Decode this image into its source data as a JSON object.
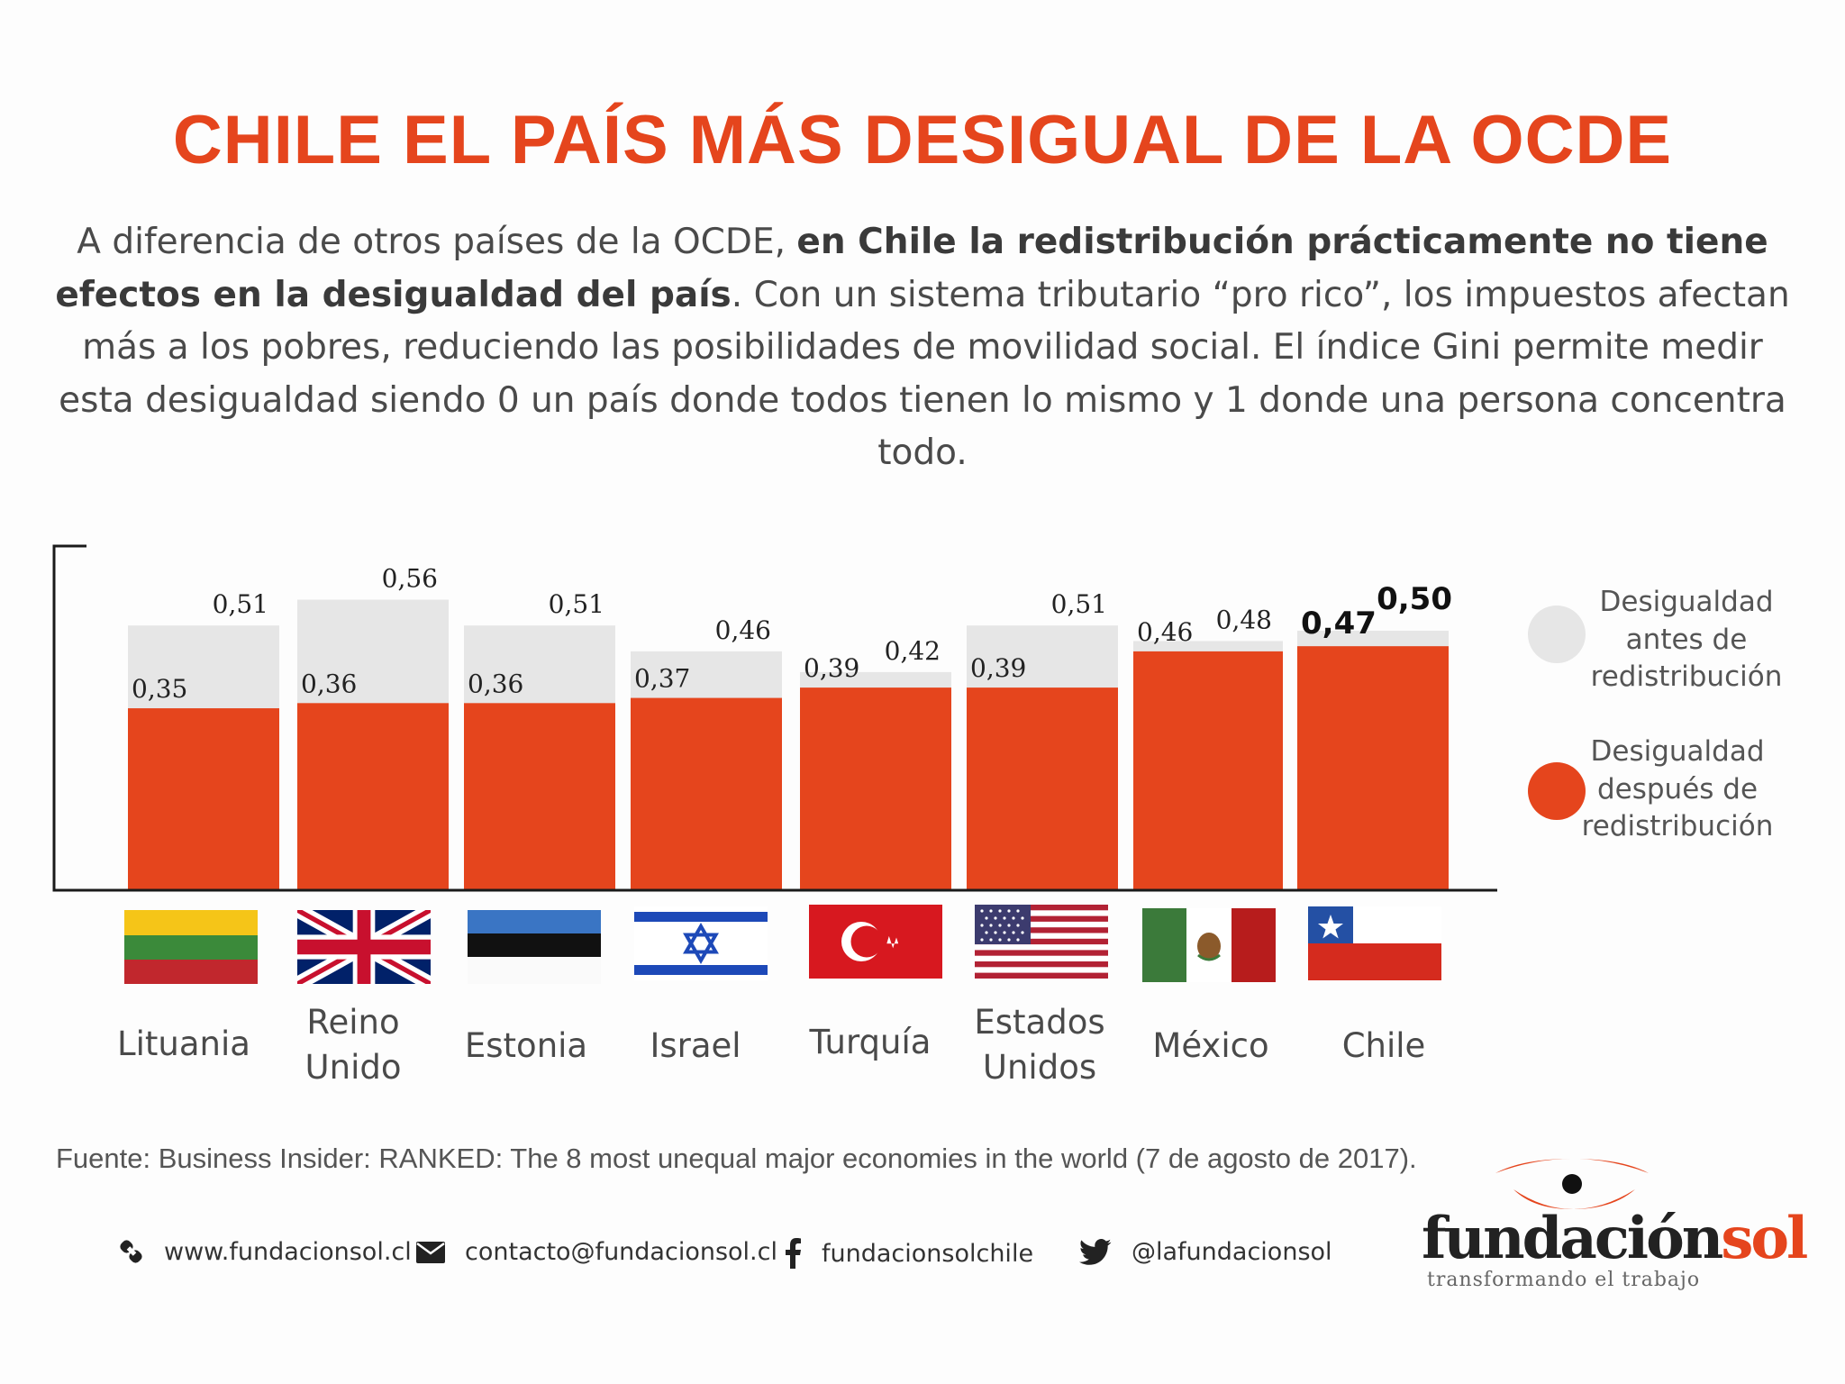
{
  "title": "CHILE EL PAÍS MÁS DESIGUAL DE LA OCDE",
  "intro": {
    "p1": "A diferencia de otros países de la OCDE, ",
    "bold": "en Chile la redistribución prácticamente no tiene efectos en la desigualdad del país",
    "p2": ". Con un sistema tributario “pro rico”, los impuestos afectan más a los pobres, reduciendo las posibilidades de movilidad social. El índice Gini permite medir esta desigualdad siendo 0 un país donde todos tienen lo mismo y 1 donde una persona concentra todo."
  },
  "chart_data": {
    "type": "bar",
    "categories": [
      "Lituania",
      "Reino Unido",
      "Estonia",
      "Israel",
      "Turquía",
      "Estados Unidos",
      "México",
      "Chile"
    ],
    "series": [
      {
        "name": "Desigualdad antes de redistribución",
        "values": [
          0.51,
          0.56,
          0.51,
          0.46,
          0.42,
          0.51,
          0.48,
          0.5
        ],
        "labels": [
          "0,51",
          "0,56",
          "0,51",
          "0,46",
          "0,42",
          "0,51",
          "0,48",
          "0,50"
        ],
        "color": "#e6e6e6"
      },
      {
        "name": "Desigualdad después de redistribución",
        "values": [
          0.35,
          0.36,
          0.36,
          0.37,
          0.39,
          0.39,
          0.46,
          0.47
        ],
        "labels": [
          "0,35",
          "0,36",
          "0,36",
          "0,37",
          "0,39",
          "0,39",
          "0,46",
          "0,47"
        ],
        "color": "#e5451d"
      }
    ],
    "highlight": "Chile",
    "ylim": [
      0,
      0.56
    ],
    "grid": false
  },
  "countries": {
    "c0": {
      "l1": "Lituania",
      "l2": ""
    },
    "c1": {
      "l1": "Reino",
      "l2": "Unido"
    },
    "c2": {
      "l1": "Estonia",
      "l2": ""
    },
    "c3": {
      "l1": "Israel",
      "l2": ""
    },
    "c4": {
      "l1": "Turquía",
      "l2": ""
    },
    "c5": {
      "l1": "Estados",
      "l2": "Unidos"
    },
    "c6": {
      "l1": "México",
      "l2": ""
    },
    "c7": {
      "l1": "Chile",
      "l2": ""
    }
  },
  "legend": {
    "before": {
      "l1": "Desigualdad",
      "l2": "antes de",
      "l3": "redistribución"
    },
    "after": {
      "l1": "Desigualdad",
      "l2": "después de",
      "l3": "redistribución"
    }
  },
  "source": "Fuente: Business Insider: RANKED: The 8 most unequal major economies in the world (7 de agosto de 2017).",
  "footer": {
    "web": "www.fundacionsol.cl",
    "email": "contacto@fundacionsol.cl",
    "facebook": "fundacionsolchile",
    "twitter": "@lafundacionsol"
  },
  "logo": {
    "word1": "fundación",
    "word2": "sol",
    "tagline": "transformando el trabajo"
  },
  "colors": {
    "accent": "#e5451d",
    "before": "#e6e6e6",
    "text": "#4a4a4a"
  },
  "icons": [
    "link-icon",
    "mail-icon",
    "facebook-icon",
    "twitter-icon",
    "eye-logo-icon"
  ]
}
